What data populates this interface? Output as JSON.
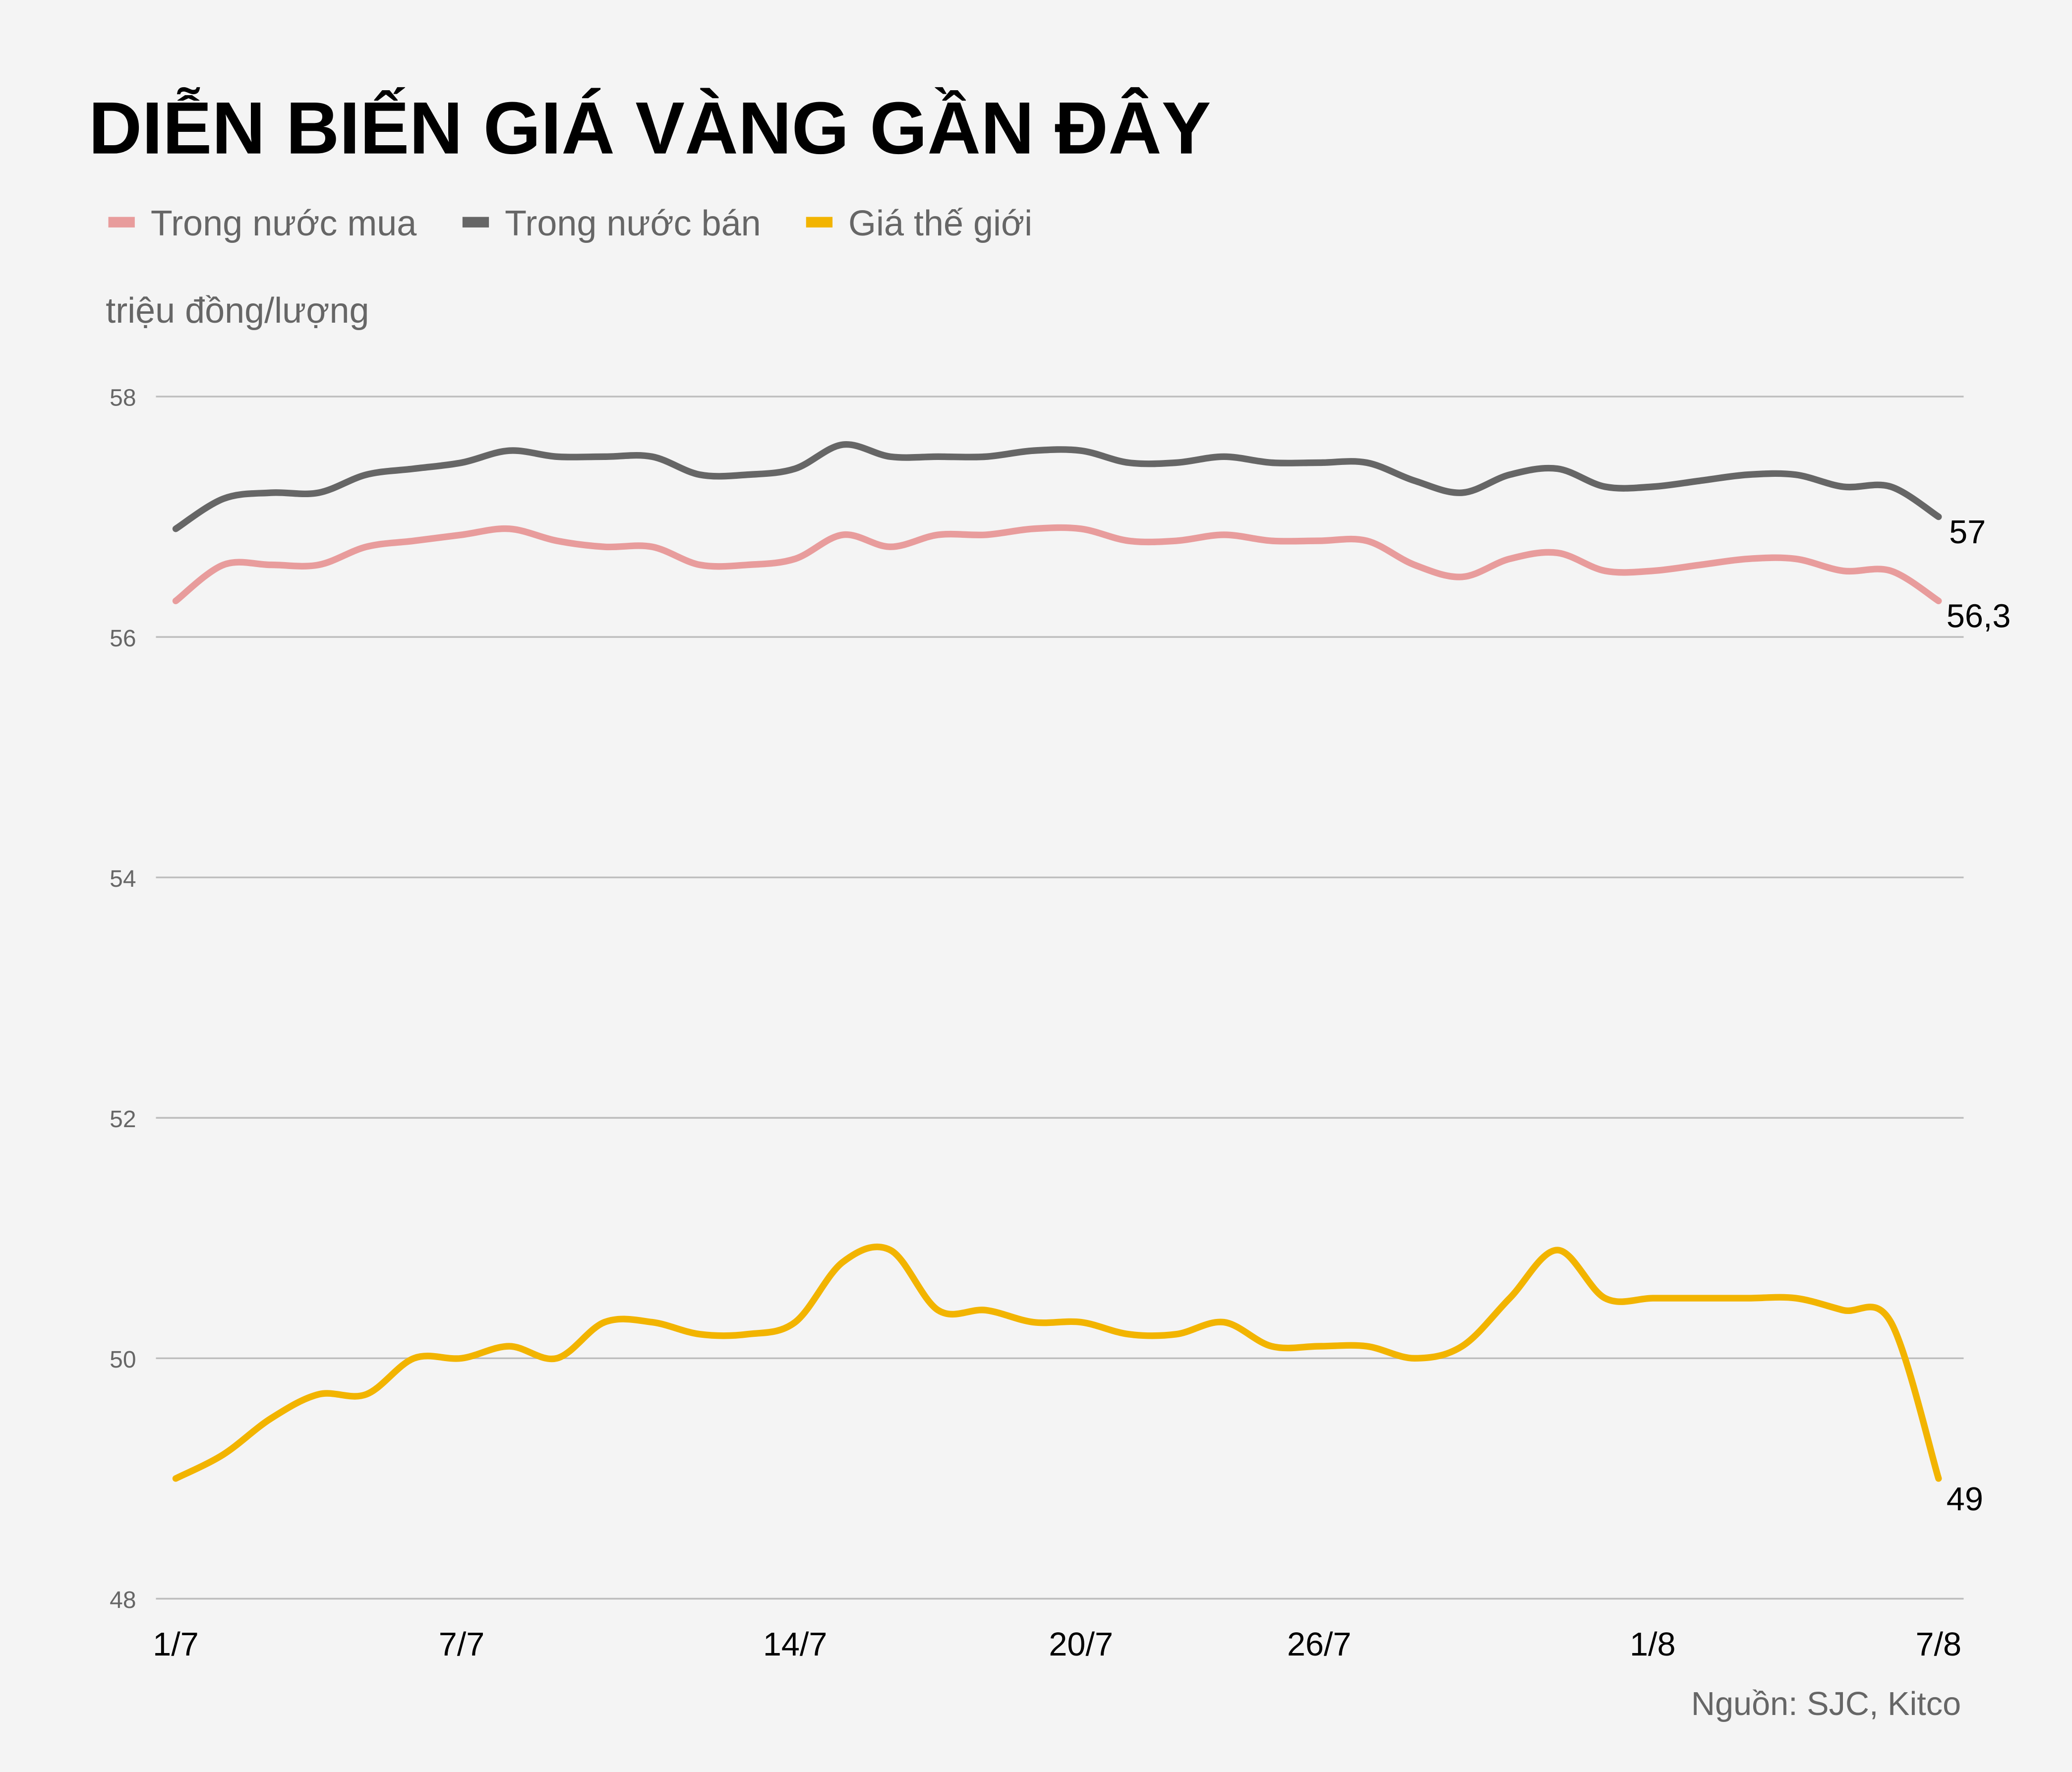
{
  "chart_data": {
    "type": "line",
    "title": "DIỄN BIẾN GIÁ VÀNG GẦN ĐÂY",
    "ylabel": "triệu đồng/lượng",
    "ylim": [
      48,
      58
    ],
    "yticks": [
      "58",
      "56",
      "54",
      "52",
      "50",
      "48"
    ],
    "ytick_values": [
      58,
      56,
      54,
      52,
      50,
      48
    ],
    "xticks": [
      {
        "index": 0,
        "label": "1/7"
      },
      {
        "index": 6,
        "label": "7/7"
      },
      {
        "index": 13,
        "label": "14/7"
      },
      {
        "index": 19,
        "label": "20/7"
      },
      {
        "index": 24,
        "label": "26/7"
      },
      {
        "index": 31,
        "label": "1/8"
      },
      {
        "index": 37,
        "label": "7/8"
      }
    ],
    "grid": true,
    "legend_position": "top-left",
    "source": "Nguồn: SJC, Kitco",
    "series": [
      {
        "name": "Trong nước mua",
        "color": "#e89c9c",
        "end_label": "56,3",
        "values": [
          56.3,
          56.6,
          56.6,
          56.6,
          56.75,
          56.8,
          56.85,
          56.9,
          56.8,
          56.75,
          56.75,
          56.6,
          56.6,
          56.65,
          56.85,
          56.75,
          56.85,
          56.85,
          56.9,
          56.9,
          56.8,
          56.8,
          56.85,
          56.8,
          56.8,
          56.8,
          56.6,
          56.5,
          56.65,
          56.7,
          56.55,
          56.55,
          56.6,
          56.65,
          56.65,
          56.55,
          56.55,
          56.3
        ]
      },
      {
        "name": "Trong nước bán",
        "color": "#666666",
        "end_label": "57",
        "values": [
          56.9,
          57.15,
          57.2,
          57.2,
          57.35,
          57.4,
          57.45,
          57.55,
          57.5,
          57.5,
          57.5,
          57.35,
          57.35,
          57.4,
          57.6,
          57.5,
          57.5,
          57.5,
          57.55,
          57.55,
          57.45,
          57.45,
          57.5,
          57.45,
          57.45,
          57.45,
          57.3,
          57.2,
          57.35,
          57.4,
          57.25,
          57.25,
          57.3,
          57.35,
          57.35,
          57.25,
          57.25,
          57.0
        ]
      },
      {
        "name": "Giá thế giới",
        "color": "#f2b400",
        "end_label": "49",
        "values": [
          49.0,
          49.2,
          49.5,
          49.7,
          49.7,
          50.0,
          50.0,
          50.1,
          50.0,
          50.3,
          50.3,
          50.2,
          50.2,
          50.3,
          50.8,
          50.9,
          50.4,
          50.4,
          50.3,
          50.3,
          50.2,
          50.2,
          50.3,
          50.1,
          50.1,
          50.1,
          50.0,
          50.1,
          50.5,
          50.9,
          50.5,
          50.5,
          50.5,
          50.5,
          50.5,
          50.4,
          50.3,
          49.0
        ]
      }
    ]
  }
}
